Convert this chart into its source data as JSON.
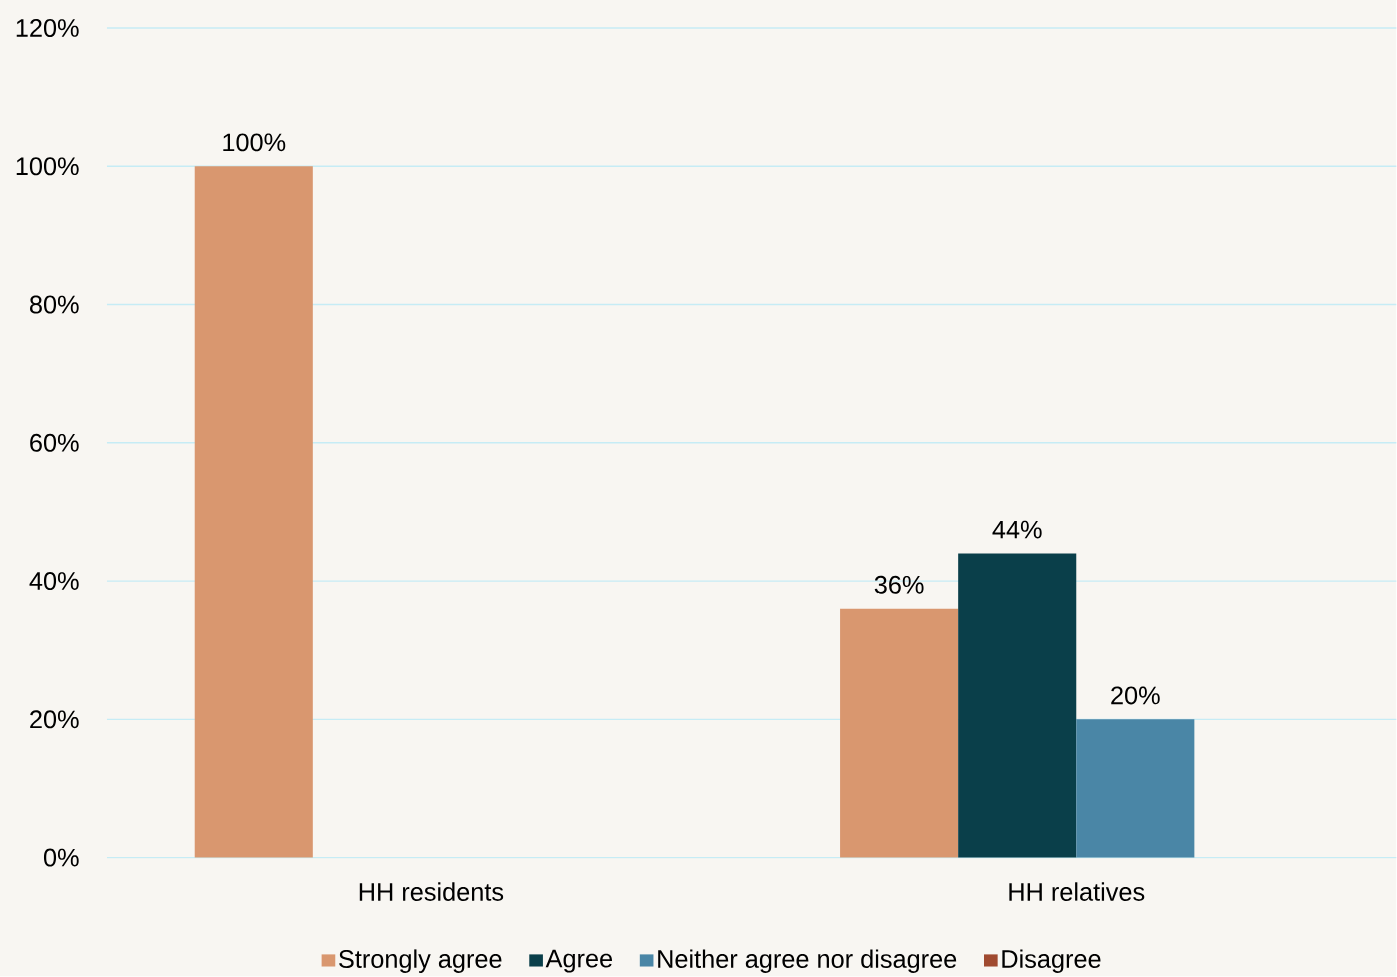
{
  "chart_data": {
    "type": "bar",
    "categories": [
      "HH residents",
      "HH relatives"
    ],
    "series": [
      {
        "name": "Strongly agree",
        "color": "#d9976f",
        "values": [
          100,
          36
        ],
        "value_labels": [
          "100%",
          "36%"
        ]
      },
      {
        "name": "Agree",
        "color": "#0a3f4a",
        "values": [
          null,
          44
        ],
        "value_labels": [
          null,
          "44%"
        ]
      },
      {
        "name": "Neither agree nor disagree",
        "color": "#4a86a6",
        "values": [
          null,
          20
        ],
        "value_labels": [
          null,
          "20%"
        ]
      },
      {
        "name": "Disagree",
        "color": "#a04a30",
        "values": [
          null,
          null
        ]
      }
    ],
    "ylim": [
      0,
      120
    ],
    "yticks": [
      {
        "value": 0,
        "label": "0%"
      },
      {
        "value": 20,
        "label": "20%"
      },
      {
        "value": 40,
        "label": "40%"
      },
      {
        "value": 60,
        "label": "60%"
      },
      {
        "value": 80,
        "label": "80%"
      },
      {
        "value": 100,
        "label": "100%"
      },
      {
        "value": 120,
        "label": "120%"
      }
    ],
    "grid": "y",
    "legend": "bottom"
  }
}
